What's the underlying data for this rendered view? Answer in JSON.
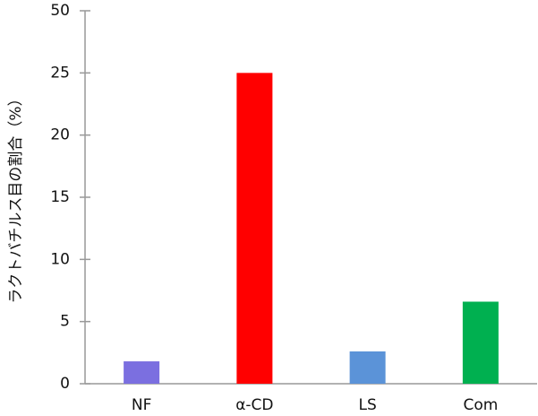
{
  "chart_data": {
    "type": "bar",
    "y_label": "ラクトバチルス目の割合（%）",
    "categories": [
      "NF",
      "α-CD",
      "LS",
      "Com"
    ],
    "values": [
      1.8,
      25,
      2.6,
      6.6
    ],
    "colors": [
      "#7b6fe0",
      "#ff0000",
      "#5b93d8",
      "#00b050"
    ],
    "ylim": [
      0,
      50
    ],
    "yticks": [
      0,
      5,
      10,
      15,
      20,
      25,
      50
    ]
  }
}
